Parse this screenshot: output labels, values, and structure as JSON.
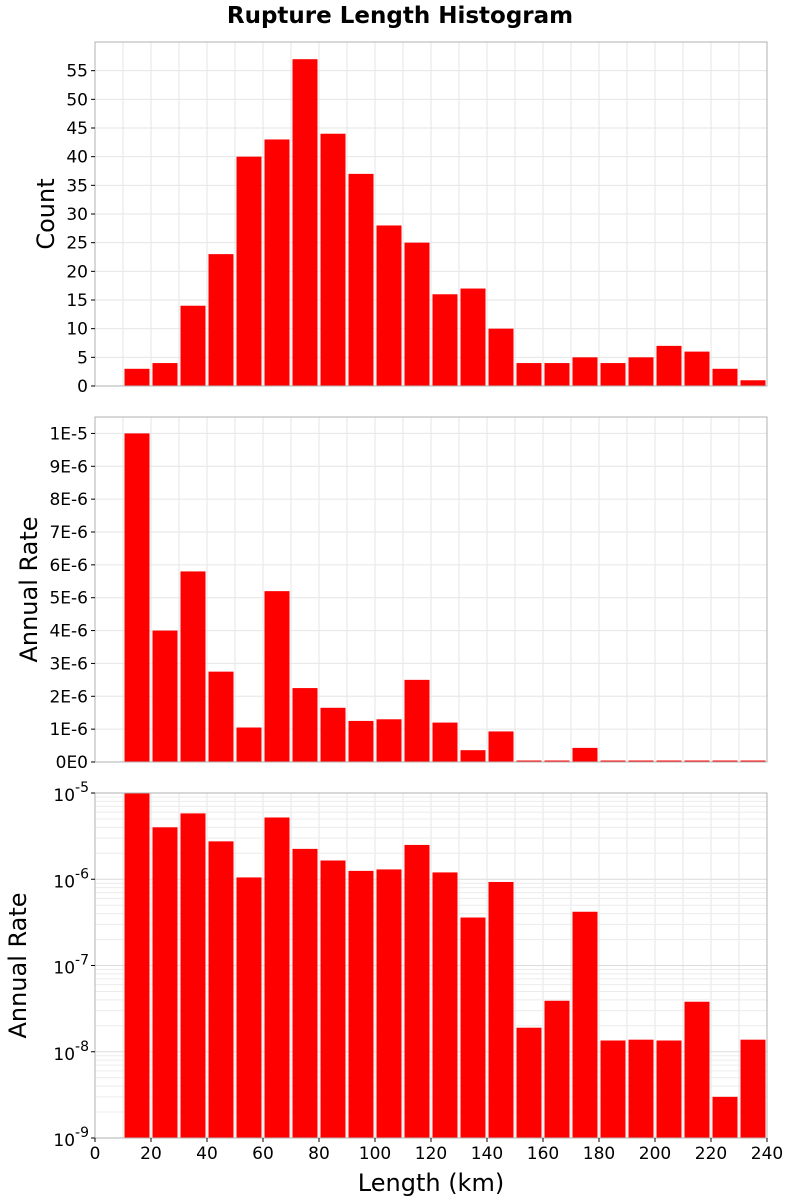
{
  "figure": {
    "title": "Rupture Length Histogram",
    "bar_color": "#ff0000"
  },
  "chart_data": [
    {
      "type": "bar",
      "ylabel": "Count",
      "ylim": [
        0,
        60
      ],
      "yticks": [
        0,
        5,
        10,
        15,
        20,
        25,
        30,
        35,
        40,
        45,
        50,
        55
      ],
      "ytick_labels": [
        "0",
        "5",
        "10",
        "15",
        "20",
        "25",
        "30",
        "35",
        "40",
        "45",
        "50",
        "55"
      ],
      "bin_width": 10,
      "bin_centers": [
        15,
        25,
        35,
        45,
        55,
        65,
        75,
        85,
        95,
        105,
        115,
        125,
        135,
        145,
        155,
        165,
        175,
        185,
        195,
        205,
        215,
        225,
        235
      ],
      "values": [
        3,
        4,
        14,
        23,
        40,
        43,
        57,
        44,
        37,
        28,
        25,
        16,
        17,
        10,
        4,
        4,
        5,
        4,
        5,
        7,
        6,
        3,
        1
      ],
      "xlim": [
        0,
        240
      ],
      "grid": true
    },
    {
      "type": "bar",
      "ylabel": "Annual Rate",
      "ylim": [
        0,
        1.05e-05
      ],
      "yticks": [
        0,
        1e-06,
        2e-06,
        3e-06,
        4e-06,
        5e-06,
        6e-06,
        7e-06,
        8e-06,
        9e-06,
        1e-05
      ],
      "ytick_labels": [
        "0E0",
        "1E-6",
        "2E-6",
        "3E-6",
        "4E-6",
        "5E-6",
        "6E-6",
        "7E-6",
        "8E-6",
        "9E-6",
        "1E-5"
      ],
      "bin_width": 10,
      "bin_centers": [
        15,
        25,
        35,
        45,
        55,
        65,
        75,
        85,
        95,
        105,
        115,
        125,
        135,
        145,
        155,
        165,
        175,
        185,
        195,
        205,
        215,
        225,
        235
      ],
      "values": [
        1e-05,
        4e-06,
        5.8e-06,
        2.75e-06,
        1.05e-06,
        5.2e-06,
        2.25e-06,
        1.65e-06,
        1.25e-06,
        1.3e-06,
        2.5e-06,
        1.2e-06,
        3.6e-07,
        9.3e-07,
        1.9e-08,
        4e-08,
        4.3e-07,
        1.4e-08,
        1.4e-08,
        1.4e-08,
        4e-08,
        3e-09,
        1.4e-08
      ],
      "xlim": [
        0,
        240
      ],
      "grid": true
    },
    {
      "type": "bar",
      "ylabel": "Annual Rate",
      "yscale": "log",
      "ylim": [
        1e-09,
        1e-05
      ],
      "yticks": [
        1e-09,
        1e-08,
        1e-07,
        1e-06,
        1e-05
      ],
      "ytick_bases": [
        "10",
        "10",
        "10",
        "10",
        "10"
      ],
      "ytick_exps": [
        "-9",
        "-8",
        "-7",
        "-6",
        "-5"
      ],
      "bin_width": 10,
      "bin_centers": [
        15,
        25,
        35,
        45,
        55,
        65,
        75,
        85,
        95,
        105,
        115,
        125,
        135,
        145,
        155,
        165,
        175,
        185,
        195,
        205,
        215,
        225,
        235
      ],
      "values": [
        1e-05,
        4e-06,
        5.8e-06,
        2.75e-06,
        1.05e-06,
        5.2e-06,
        2.25e-06,
        1.65e-06,
        1.25e-06,
        1.3e-06,
        2.5e-06,
        1.2e-06,
        3.6e-07,
        9.3e-07,
        1.9e-08,
        3.9e-08,
        4.2e-07,
        1.35e-08,
        1.38e-08,
        1.35e-08,
        3.8e-08,
        3e-09,
        1.38e-08
      ],
      "xlim": [
        0,
        240
      ],
      "xlabel": "Length (km)",
      "xticks": [
        0,
        20,
        40,
        60,
        80,
        100,
        120,
        140,
        160,
        180,
        200,
        220,
        240
      ],
      "xtick_labels": [
        "0",
        "20",
        "40",
        "60",
        "80",
        "100",
        "120",
        "140",
        "160",
        "180",
        "200",
        "220",
        "240"
      ],
      "grid": true
    }
  ]
}
